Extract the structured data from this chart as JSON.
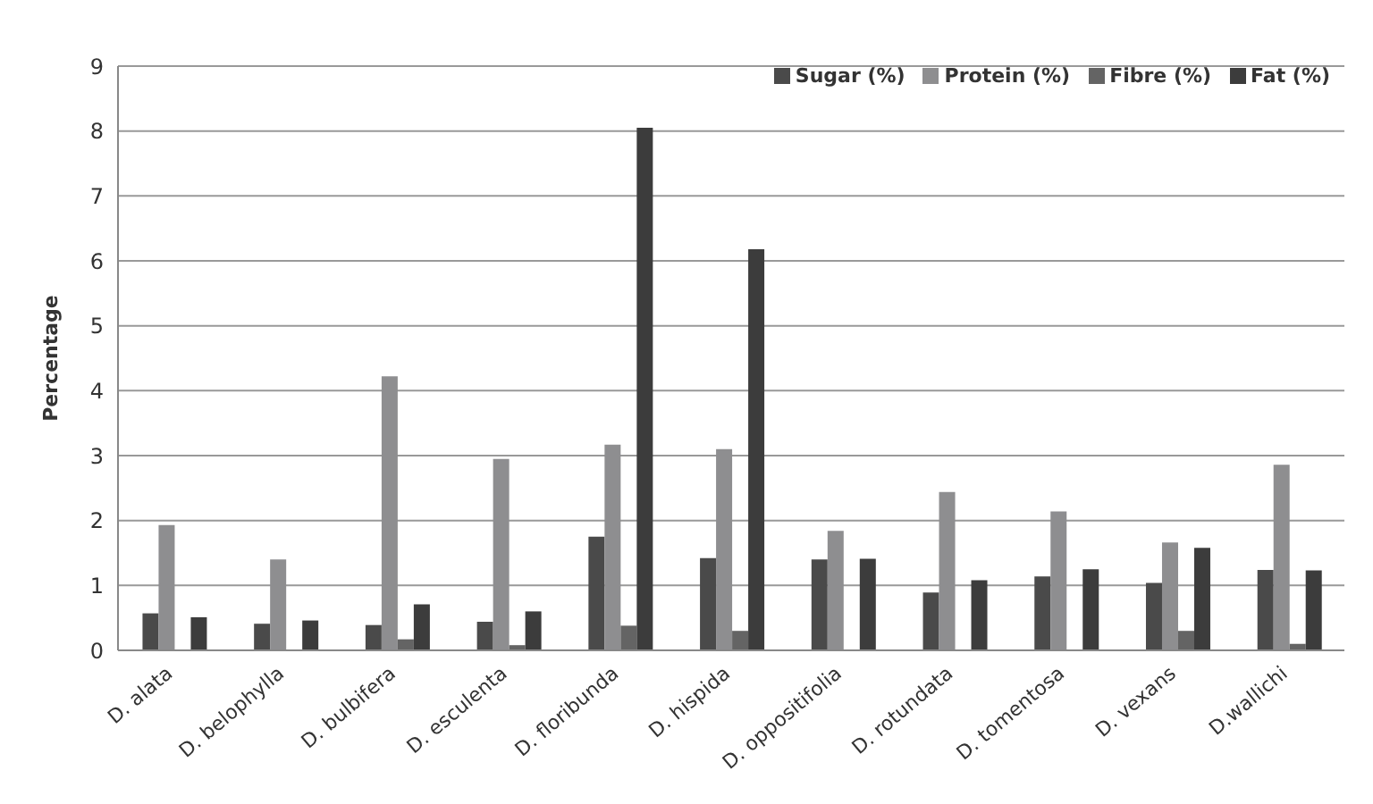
{
  "chart_data": {
    "type": "bar",
    "ylabel": "Percentage",
    "categories": [
      "D. alata",
      "D. belophylla",
      "D. bulbifera",
      "D. esculenta",
      "D. floribunda",
      "D. hispida",
      "D. oppositifolia",
      "D. rotundata",
      "D. tomentosa",
      "D. vexans",
      "D.wallichi"
    ],
    "series": [
      {
        "name": "Sugar (%)",
        "color": "#4a4a4a",
        "values": [
          0.57,
          0.41,
          0.39,
          0.44,
          1.75,
          1.42,
          1.4,
          0.89,
          1.14,
          1.04,
          1.24
        ]
      },
      {
        "name": "Protein (%)",
        "color": "#8e8e90",
        "values": [
          1.93,
          1.4,
          4.22,
          2.95,
          3.17,
          3.1,
          1.84,
          2.44,
          2.14,
          1.66,
          2.86
        ]
      },
      {
        "name": "Fibre  (%)",
        "color": "#646464",
        "values": [
          null,
          0,
          0.17,
          0.08,
          0.38,
          0.3,
          null,
          null,
          null,
          0.3,
          0.1
        ]
      },
      {
        "name": "Fat (%)",
        "color": "#3c3c3c",
        "values": [
          0.51,
          0.46,
          0.71,
          0.6,
          8.05,
          6.18,
          1.41,
          1.08,
          1.25,
          1.58,
          1.23
        ]
      }
    ],
    "ylim": [
      0,
      9
    ],
    "yticks": [
      0,
      1,
      2,
      3,
      4,
      5,
      6,
      7,
      8,
      9
    ],
    "grid": "y",
    "legend": "top right"
  }
}
